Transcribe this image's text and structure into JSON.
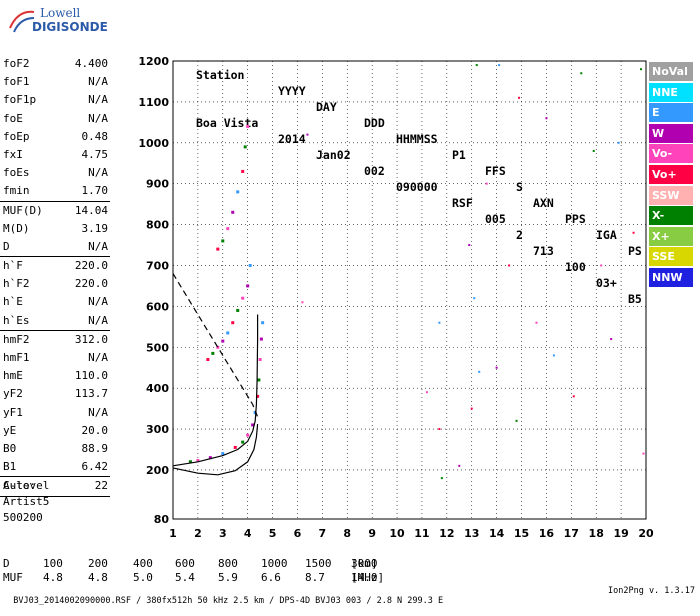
{
  "logo": {
    "line1": "Lowell",
    "line2": "DIGISONDE"
  },
  "header": {
    "labels": [
      "Station",
      "YYYY",
      "DAY",
      "DDD",
      "HHMMSS",
      "P1",
      "FFS",
      "S",
      "AXN",
      "PPS",
      "IGA",
      "PS"
    ],
    "values": [
      "Boa Vista",
      "2014",
      "Jan02",
      "002",
      "090000",
      "RSF",
      "005",
      "2",
      "713",
      "100",
      "03+",
      "B5"
    ]
  },
  "params": [
    {
      "label": "foF2",
      "value": "4.400"
    },
    {
      "label": "foF1",
      "value": "N/A"
    },
    {
      "label": "foF1p",
      "value": "N/A"
    },
    {
      "label": "foE",
      "value": "N/A"
    },
    {
      "label": "foEp",
      "value": "0.48"
    },
    {
      "label": "fxI",
      "value": "4.75"
    },
    {
      "label": "foEs",
      "value": "N/A"
    },
    {
      "label": "fmin",
      "value": "1.70"
    },
    {
      "sep": true
    },
    {
      "label": "MUF(D)",
      "value": "14.04"
    },
    {
      "label": "M(D)",
      "value": "3.19"
    },
    {
      "label": "D",
      "value": "N/A"
    },
    {
      "sep": true
    },
    {
      "label": "h`F",
      "value": "220.0"
    },
    {
      "label": "h`F2",
      "value": "220.0"
    },
    {
      "label": "h`E",
      "value": "N/A"
    },
    {
      "label": "h`Es",
      "value": "N/A"
    },
    {
      "sep": true
    },
    {
      "label": "hmF2",
      "value": "312.0"
    },
    {
      "label": "hmF1",
      "value": "N/A"
    },
    {
      "label": "hmE",
      "value": "110.0"
    },
    {
      "label": "yF2",
      "value": "113.7"
    },
    {
      "label": "yF1",
      "value": "N/A"
    },
    {
      "label": "yE",
      "value": "20.0"
    },
    {
      "label": "B0",
      "value": "88.9"
    },
    {
      "label": "B1",
      "value": "6.42"
    },
    {
      "sep": true
    },
    {
      "label": "C-level",
      "value": "22"
    },
    {
      "sep": true
    }
  ],
  "auto": {
    "line1": "Auto:",
    "line2": "Artist5",
    "line3": "500200"
  },
  "legend": [
    {
      "label": "NoVal",
      "color": "#a0a0a0"
    },
    {
      "label": "NNE",
      "color": "#00e0ff"
    },
    {
      "label": "E",
      "color": "#3399ff"
    },
    {
      "label": "W",
      "color": "#b000b0"
    },
    {
      "label": "Vo-",
      "color": "#ff44bb"
    },
    {
      "label": "Vo+",
      "color": "#ff0044"
    },
    {
      "label": "SSW",
      "color": "#ffb0b0"
    },
    {
      "label": "X-",
      "color": "#008000"
    },
    {
      "label": "X+",
      "color": "#88cc44"
    },
    {
      "label": "SSE",
      "color": "#d8d800"
    },
    {
      "label": "NNW",
      "color": "#2020e0"
    }
  ],
  "table": {
    "d_label": "D",
    "d_values": [
      "100",
      "200",
      "400",
      "600",
      "800",
      "1000",
      "1500",
      "3000"
    ],
    "d_unit": "[km]",
    "muf_label": "MUF",
    "muf_values": [
      "4.8",
      "4.8",
      "5.0",
      "5.4",
      "5.9",
      "6.6",
      "8.7",
      "14.0"
    ],
    "muf_unit": "[MHz]"
  },
  "footer": {
    "info": "BVJ03_2014002090000.RSF / 380fx512h 50 kHz 2.5 km / DPS-4D BVJ03 003 / 2.8 N 299.3 E",
    "version": "Ion2Png v. 1.3.17"
  },
  "chart_data": {
    "type": "scatter",
    "title": "",
    "xlabel": "",
    "ylabel": "",
    "x_ticks": [
      1,
      2,
      3,
      4,
      5,
      6,
      7,
      8,
      9,
      10,
      11,
      12,
      13,
      14,
      15,
      16,
      17,
      18,
      19,
      20
    ],
    "y_ticks": [
      80,
      200,
      300,
      400,
      500,
      600,
      700,
      800,
      900,
      1000,
      1100,
      1200
    ],
    "xlim": [
      1,
      20
    ],
    "ylim": [
      80,
      1200
    ],
    "grid": true,
    "legend_position": "right",
    "trace_points": [
      [
        1.7,
        220
      ],
      [
        2.0,
        223
      ],
      [
        2.5,
        230
      ],
      [
        3.0,
        240
      ],
      [
        3.5,
        255
      ],
      [
        3.8,
        268
      ],
      [
        4.0,
        285
      ],
      [
        4.2,
        310
      ],
      [
        4.3,
        340
      ],
      [
        4.4,
        380
      ],
      [
        4.45,
        420
      ],
      [
        4.5,
        470
      ],
      [
        4.55,
        520
      ],
      [
        4.6,
        560
      ],
      [
        2.4,
        470
      ],
      [
        2.6,
        485
      ],
      [
        2.8,
        500
      ],
      [
        3.0,
        515
      ],
      [
        3.2,
        535
      ],
      [
        3.4,
        560
      ],
      [
        3.6,
        590
      ],
      [
        3.8,
        620
      ],
      [
        4.0,
        650
      ],
      [
        4.1,
        700
      ],
      [
        2.8,
        740
      ],
      [
        3.0,
        760
      ],
      [
        3.2,
        790
      ],
      [
        3.4,
        830
      ],
      [
        3.6,
        880
      ],
      [
        3.8,
        930
      ],
      [
        3.9,
        990
      ],
      [
        4.0,
        1040
      ]
    ],
    "scatter_points": [
      [
        6.2,
        610
      ],
      [
        6.4,
        1020
      ],
      [
        11.7,
        560
      ],
      [
        11.7,
        300
      ],
      [
        11.8,
        180
      ],
      [
        11.2,
        390
      ],
      [
        12.9,
        750
      ],
      [
        13.1,
        620
      ],
      [
        13.0,
        350
      ],
      [
        13.2,
        1190
      ],
      [
        13.6,
        900
      ],
      [
        14.0,
        450
      ],
      [
        14.1,
        1190
      ],
      [
        14.5,
        700
      ],
      [
        14.8,
        320
      ],
      [
        15.6,
        560
      ],
      [
        16.0,
        1060
      ],
      [
        16.3,
        480
      ],
      [
        17.1,
        380
      ],
      [
        17.9,
        980
      ],
      [
        18.2,
        700
      ],
      [
        18.6,
        520
      ],
      [
        18.9,
        1000
      ],
      [
        19.5,
        780
      ],
      [
        19.8,
        1180
      ],
      [
        19.9,
        240
      ],
      [
        12.5,
        210
      ],
      [
        13.3,
        440
      ],
      [
        14.9,
        1110
      ],
      [
        17.4,
        1170
      ]
    ],
    "curve_virtual_height": [
      [
        1.0,
        210
      ],
      [
        2.0,
        220
      ],
      [
        3.0,
        235
      ],
      [
        3.6,
        250
      ],
      [
        4.0,
        270
      ],
      [
        4.2,
        295
      ],
      [
        4.3,
        320
      ],
      [
        4.35,
        360
      ],
      [
        4.38,
        420
      ],
      [
        4.4,
        520
      ],
      [
        4.4,
        580
      ]
    ],
    "curve_profile": [
      [
        1.0,
        205
      ],
      [
        2.0,
        192
      ],
      [
        2.8,
        188
      ],
      [
        3.5,
        198
      ],
      [
        4.0,
        220
      ],
      [
        4.25,
        250
      ],
      [
        4.35,
        280
      ],
      [
        4.4,
        312
      ]
    ],
    "curve_dashed": [
      [
        1.0,
        680
      ],
      [
        1.8,
        600
      ],
      [
        2.6,
        520
      ],
      [
        3.3,
        450
      ],
      [
        3.8,
        400
      ],
      [
        4.2,
        360
      ],
      [
        4.4,
        330
      ]
    ]
  }
}
